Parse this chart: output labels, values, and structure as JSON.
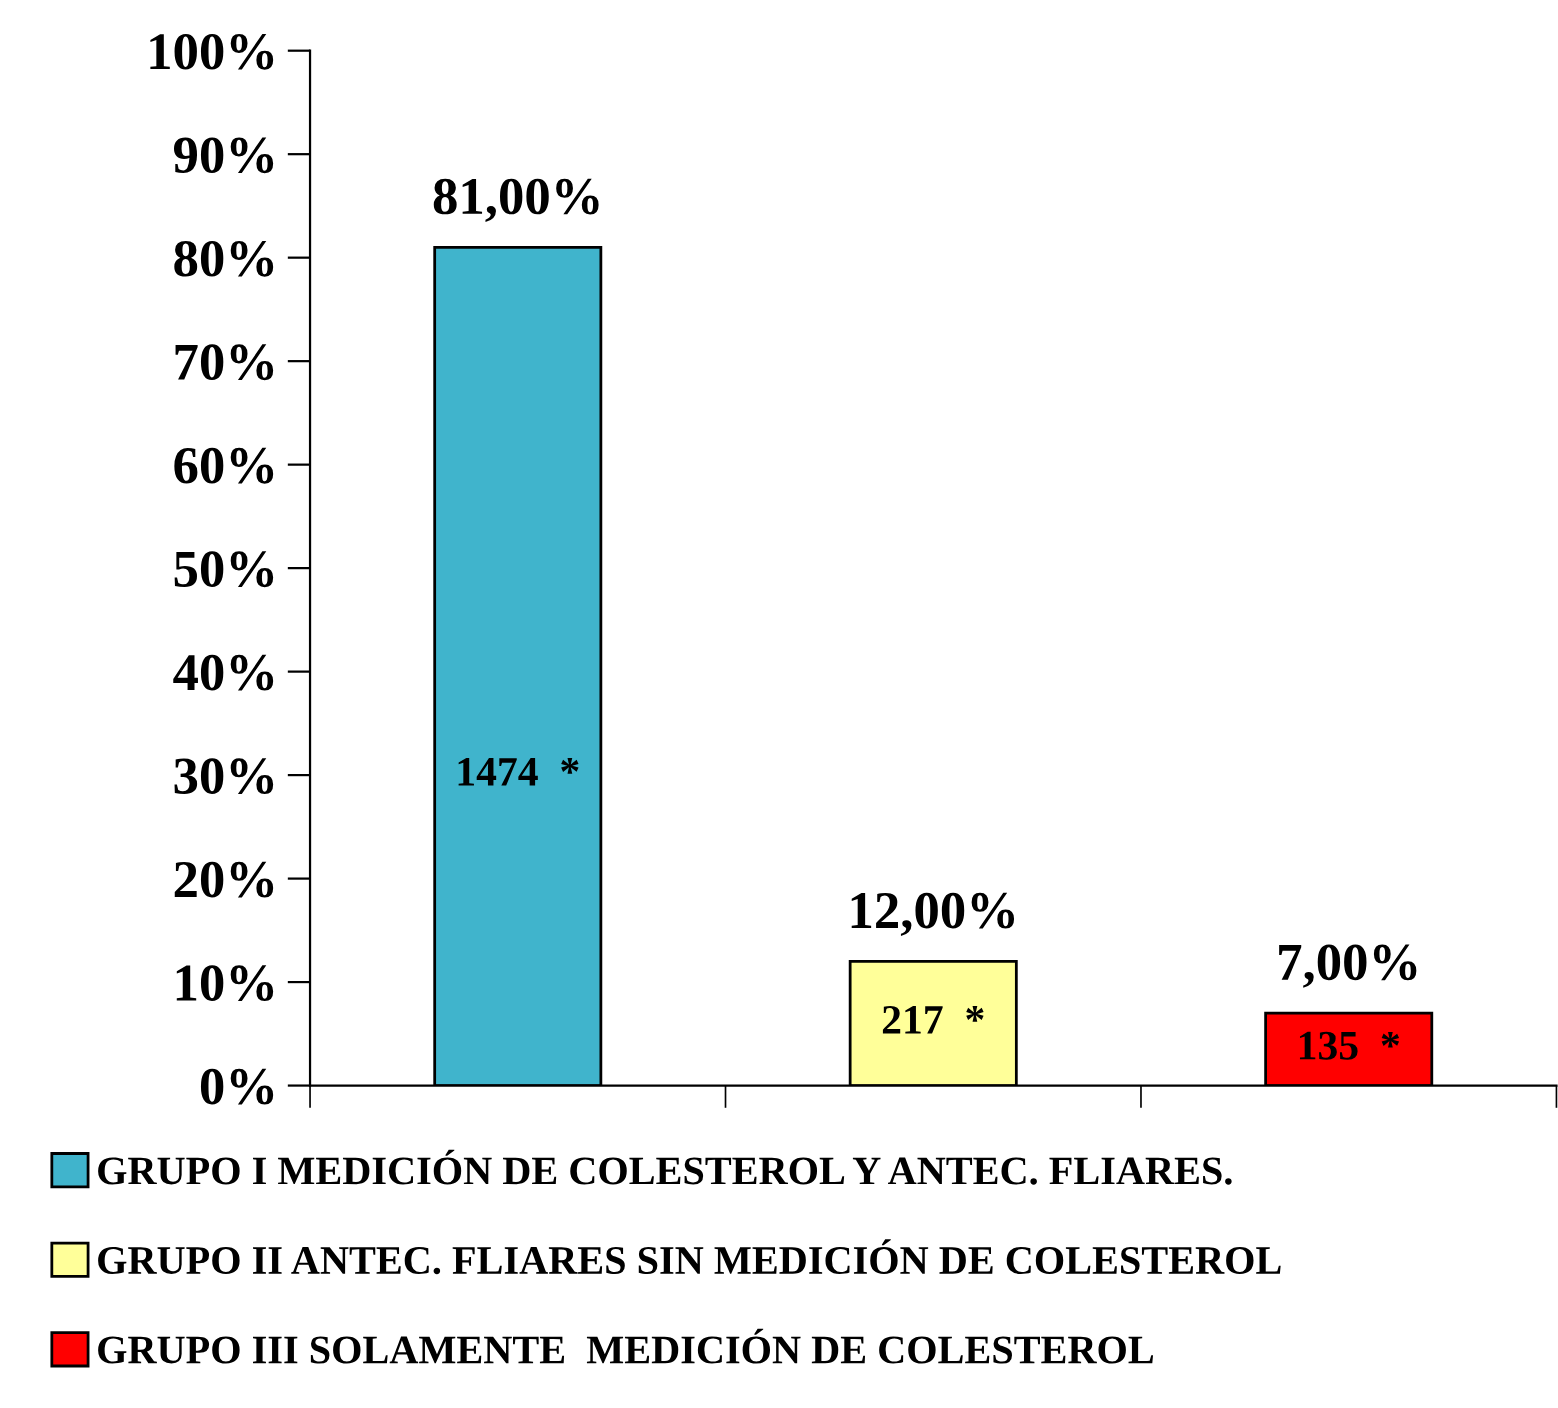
{
  "chart_data": {
    "type": "bar",
    "categories": [
      null,
      null,
      null
    ],
    "series": [
      {
        "name": "GRUPO I MEDICIÓN DE COLESTEROL Y ANTEC. FLIARES.",
        "color": "#40b4cc",
        "values": [
          81,
          null,
          null
        ],
        "value_labels": [
          "81,00%",
          null,
          null
        ]
      },
      {
        "name": "GRUPO II ANTEC. FLIARES SIN MEDICIÓN DE COLESTEROL",
        "color": "#ffff99",
        "values": [
          null,
          12,
          null
        ],
        "value_labels": [
          null,
          "12,00%",
          null
        ]
      },
      {
        "name": "GRUPO III SOLAMENTE  MEDICIÓN DE COLESTEROL",
        "color": "#ff0000",
        "values": [
          null,
          null,
          7
        ],
        "value_labels": [
          null,
          null,
          "7,00%"
        ]
      }
    ],
    "annotations": [
      "1474  *",
      "217  *",
      "135  *"
    ],
    "ylim": [
      0,
      100
    ],
    "yticks": [
      {
        "value": 0,
        "label": "0%"
      },
      {
        "value": 10,
        "label": "10%"
      },
      {
        "value": 20,
        "label": "20%"
      },
      {
        "value": 30,
        "label": "30%"
      },
      {
        "value": 40,
        "label": "40%"
      },
      {
        "value": 50,
        "label": "50%"
      },
      {
        "value": 60,
        "label": "60%"
      },
      {
        "value": 70,
        "label": "70%"
      },
      {
        "value": 80,
        "label": "80%"
      },
      {
        "value": 90,
        "label": "90%"
      },
      {
        "value": 100,
        "label": "100%"
      }
    ],
    "grid": false,
    "legend": "bottom"
  }
}
